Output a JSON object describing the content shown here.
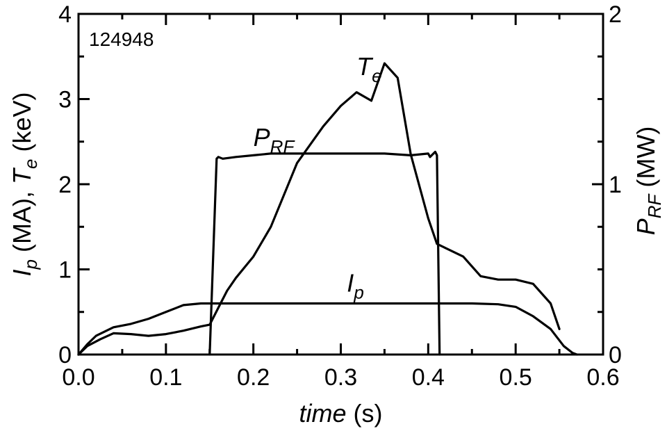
{
  "chart_data": {
    "type": "line",
    "shot_label": "124948",
    "x_axis": {
      "title_italic": "time",
      "title_rest": " (s)",
      "range": [
        0.0,
        0.6
      ],
      "ticks": [
        0.0,
        0.1,
        0.2,
        0.3,
        0.4,
        0.5,
        0.6
      ],
      "tick_labels": [
        "0.0",
        "0.1",
        "0.2",
        "0.3",
        "0.4",
        "0.5",
        "0.6"
      ]
    },
    "y_left": {
      "title_parts": [
        {
          "text": "I",
          "italic": true,
          "sub": false
        },
        {
          "text": "p",
          "italic": true,
          "sub": true
        },
        {
          "text": " (MA), ",
          "italic": false,
          "sub": false
        },
        {
          "text": "T",
          "italic": true,
          "sub": false
        },
        {
          "text": "e",
          "italic": true,
          "sub": true
        },
        {
          "text": " (keV)",
          "italic": false,
          "sub": false
        }
      ],
      "range": [
        0,
        4
      ],
      "ticks": [
        0,
        1,
        2,
        3,
        4
      ],
      "tick_labels": [
        "0",
        "1",
        "2",
        "3",
        "4"
      ]
    },
    "y_right": {
      "title_parts": [
        {
          "text": "P",
          "italic": true,
          "sub": false
        },
        {
          "text": "RF",
          "italic": true,
          "sub": true
        },
        {
          "text": " (MW)",
          "italic": false,
          "sub": false
        }
      ],
      "range": [
        0,
        2
      ],
      "ticks": [
        0,
        1,
        2
      ],
      "tick_labels": [
        "0",
        "1",
        "2"
      ]
    },
    "series": [
      {
        "name": "Te",
        "label_main": "T",
        "label_sub": "e",
        "axis": "left",
        "color": "#000000",
        "x": [
          0.0,
          0.01,
          0.025,
          0.04,
          0.06,
          0.08,
          0.1,
          0.12,
          0.14,
          0.15,
          0.16,
          0.17,
          0.18,
          0.2,
          0.22,
          0.25,
          0.28,
          0.3,
          0.318,
          0.335,
          0.35,
          0.365,
          0.38,
          0.4,
          0.41,
          0.42,
          0.44,
          0.46,
          0.48,
          0.5,
          0.52,
          0.54,
          0.55
        ],
        "y": [
          0.0,
          0.1,
          0.18,
          0.25,
          0.24,
          0.22,
          0.24,
          0.28,
          0.33,
          0.35,
          0.55,
          0.75,
          0.9,
          1.15,
          1.5,
          2.25,
          2.68,
          2.92,
          3.08,
          2.98,
          3.42,
          3.25,
          2.35,
          1.6,
          1.3,
          1.25,
          1.15,
          0.92,
          0.88,
          0.88,
          0.83,
          0.6,
          0.3
        ]
      },
      {
        "name": "PRF",
        "label_main": "P",
        "label_sub": "RF",
        "axis": "right",
        "color": "#000000",
        "x": [
          0.15,
          0.158,
          0.16,
          0.165,
          0.18,
          0.2,
          0.22,
          0.25,
          0.3,
          0.35,
          0.38,
          0.4,
          0.402,
          0.408,
          0.41,
          0.413
        ],
        "y": [
          0.0,
          1.15,
          1.16,
          1.15,
          1.16,
          1.17,
          1.18,
          1.18,
          1.18,
          1.18,
          1.17,
          1.18,
          1.16,
          1.19,
          1.17,
          0.0
        ]
      },
      {
        "name": "Ip",
        "label_main": "I",
        "label_sub": "p",
        "axis": "left",
        "color": "#000000",
        "x": [
          0.0,
          0.01,
          0.02,
          0.04,
          0.06,
          0.08,
          0.1,
          0.12,
          0.14,
          0.16,
          0.2,
          0.25,
          0.3,
          0.35,
          0.4,
          0.45,
          0.48,
          0.5,
          0.52,
          0.54,
          0.555,
          0.565,
          0.57
        ],
        "y": [
          0.0,
          0.12,
          0.22,
          0.32,
          0.36,
          0.42,
          0.5,
          0.58,
          0.6,
          0.6,
          0.6,
          0.6,
          0.6,
          0.6,
          0.6,
          0.6,
          0.59,
          0.56,
          0.45,
          0.3,
          0.1,
          0.02,
          0.0
        ]
      }
    ],
    "annotations": [
      {
        "main": "T",
        "sub": "e",
        "x": 0.318,
        "y": 3.28,
        "axis": "left"
      },
      {
        "main": "P",
        "sub": "RF",
        "x": 0.2,
        "y": 2.45,
        "axis": "left"
      },
      {
        "main": "I",
        "sub": "p",
        "x": 0.307,
        "y": 0.74,
        "axis": "left"
      }
    ],
    "grid": false,
    "legend": "none"
  }
}
